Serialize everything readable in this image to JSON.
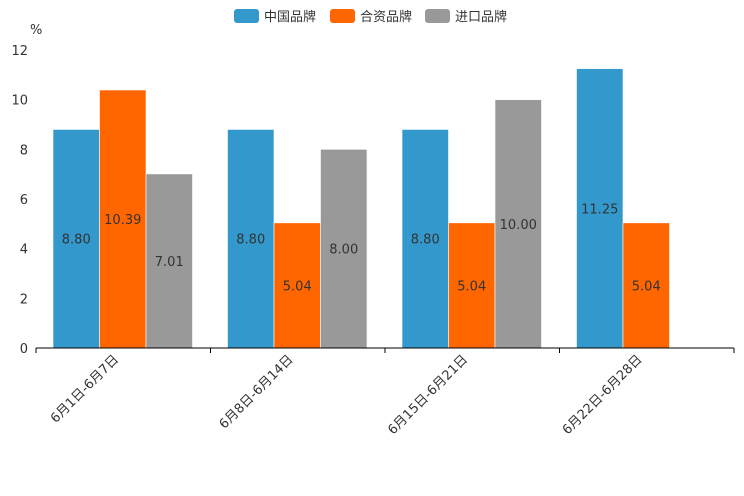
{
  "chart_data": {
    "type": "bar",
    "unit": "%",
    "ylim": [
      0,
      12
    ],
    "yticks": [
      0,
      2,
      4,
      6,
      8,
      10,
      12
    ],
    "categories": [
      "6月1日-6月7日",
      "6月8日-6月14日",
      "6月15日-6月21日",
      "6月22日-6月28日"
    ],
    "series": [
      {
        "name": "中国品牌",
        "color": "#3399cc",
        "values": [
          8.8,
          8.8,
          8.8,
          11.25
        ],
        "labels": [
          "8.80",
          "8.80",
          "8.80",
          "11.25"
        ]
      },
      {
        "name": "合资品牌",
        "color": "#ff6600",
        "values": [
          10.39,
          5.04,
          5.04,
          5.04
        ],
        "labels": [
          "10.39",
          "5.04",
          "5.04",
          "5.04"
        ]
      },
      {
        "name": "进口品牌",
        "color": "#999999",
        "values": [
          7.01,
          8.0,
          10.0,
          null
        ],
        "labels": [
          "7.01",
          "8.00",
          "10.00",
          null
        ]
      }
    ],
    "legend_position": "top-center",
    "grid": false
  }
}
